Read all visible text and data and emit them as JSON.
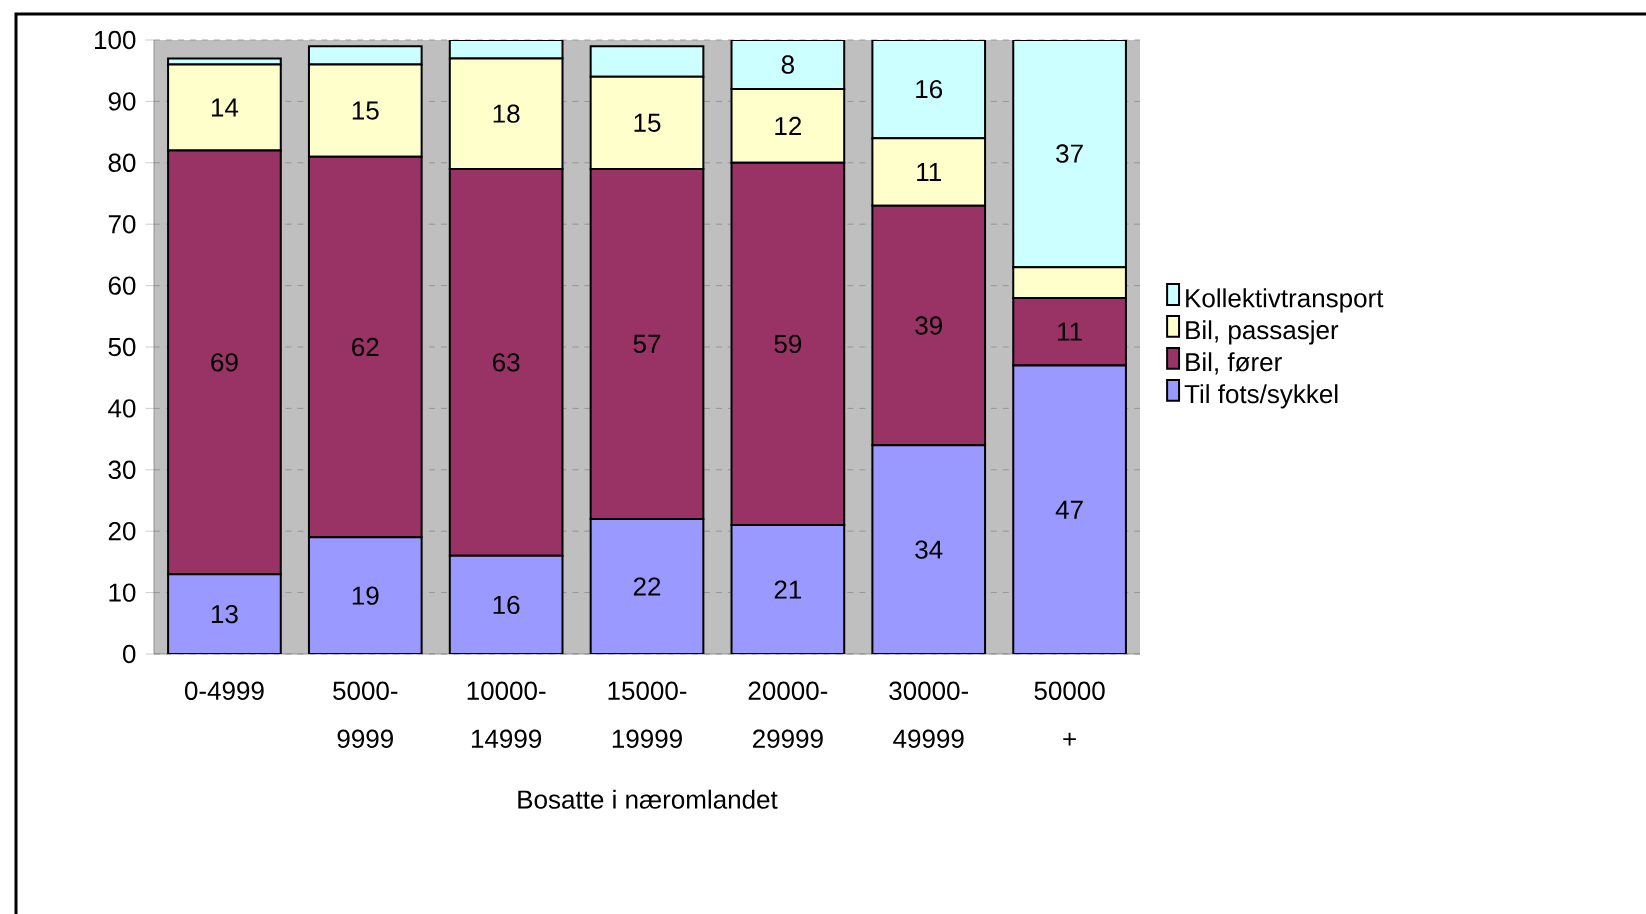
{
  "chart_data": {
    "type": "bar",
    "stacked": true,
    "xlabel": "Bosatte i næromlandet",
    "categories": [
      "0-4999",
      "5000-9999",
      "10000-14999",
      "15000-19999",
      "20000-29999",
      "30000-49999",
      "50000 +"
    ],
    "series": [
      {
        "name": "Til fots/sykkel",
        "color": "#9999ff",
        "values": [
          13,
          19,
          16,
          22,
          21,
          34,
          47
        ],
        "value_labels": [
          "13",
          "19",
          "16",
          "22",
          "21",
          "34",
          "47"
        ]
      },
      {
        "name": "Bil, fører",
        "color": "#993366",
        "values": [
          69,
          62,
          63,
          57,
          59,
          39,
          11
        ],
        "value_labels": [
          "69",
          "62",
          "63",
          "57",
          "59",
          "39",
          "11"
        ]
      },
      {
        "name": "Bil, passasjer",
        "color": "#ffffcc",
        "values": [
          14,
          15,
          18,
          15,
          12,
          11,
          5
        ],
        "value_labels": [
          "14",
          "15",
          "18",
          "15",
          "12",
          "11",
          null
        ]
      },
      {
        "name": "Kollektivtransport",
        "color": "#ccffff",
        "values": [
          1,
          3,
          3,
          5,
          8,
          16,
          37
        ],
        "value_labels": [
          null,
          null,
          null,
          null,
          "8",
          "16",
          "37"
        ]
      }
    ],
    "ylim": [
      0,
      100
    ],
    "yticks": [
      0,
      10,
      20,
      30,
      40,
      50,
      60,
      70,
      80,
      90,
      100
    ],
    "grid": "y",
    "legend": "right"
  }
}
